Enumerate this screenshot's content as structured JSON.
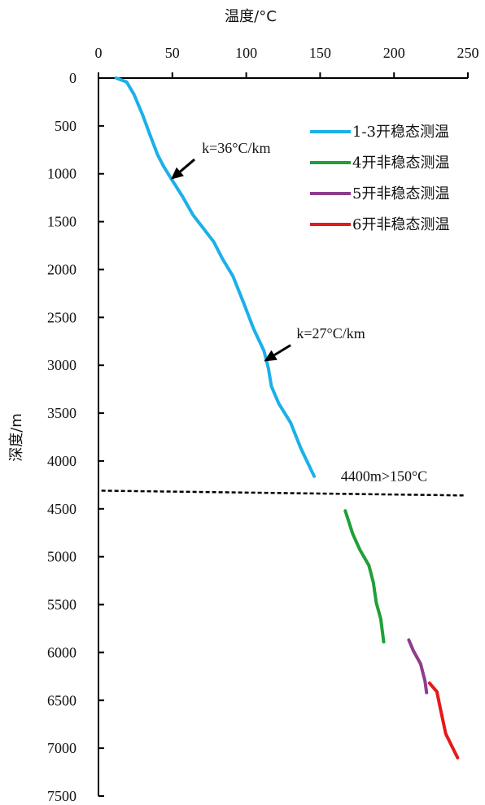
{
  "chart_data": {
    "type": "line",
    "xlabel": "温度/°C",
    "ylabel": "深度/m",
    "x_axis_position": "top",
    "y_axis_inverted": true,
    "xlim": [
      0,
      250
    ],
    "ylim": [
      0,
      7500
    ],
    "x_ticks": [
      "0",
      "50",
      "100",
      "150",
      "200",
      "250"
    ],
    "y_ticks": [
      "0",
      "500",
      "1000",
      "1500",
      "2000",
      "2500",
      "3000",
      "3500",
      "4000",
      "4500",
      "5000",
      "5500",
      "6000",
      "6500",
      "7000",
      "7500"
    ],
    "legend_position": "top-right",
    "series": [
      {
        "name": "1-3开稳态测温",
        "color": "#1ab0ea",
        "points": [
          [
            12,
            0
          ],
          [
            19,
            40
          ],
          [
            24,
            170
          ],
          [
            30,
            390
          ],
          [
            35,
            600
          ],
          [
            40,
            800
          ],
          [
            44,
            920
          ],
          [
            50,
            1070
          ],
          [
            57,
            1240
          ],
          [
            64,
            1430
          ],
          [
            71,
            1570
          ],
          [
            78,
            1710
          ],
          [
            84,
            1890
          ],
          [
            91,
            2070
          ],
          [
            98,
            2340
          ],
          [
            105,
            2620
          ],
          [
            112,
            2850
          ],
          [
            115,
            3030
          ],
          [
            117,
            3220
          ],
          [
            122,
            3400
          ],
          [
            130,
            3600
          ],
          [
            137,
            3870
          ],
          [
            146,
            4160
          ]
        ]
      },
      {
        "name": "4开非稳态测温",
        "color": "#1fa038",
        "points": [
          [
            167,
            4520
          ],
          [
            172,
            4760
          ],
          [
            177,
            4930
          ],
          [
            183,
            5090
          ],
          [
            186,
            5270
          ],
          [
            188,
            5480
          ],
          [
            191,
            5650
          ],
          [
            193,
            5890
          ]
        ]
      },
      {
        "name": "5开非稳态测温",
        "color": "#8e3c8e",
        "points": [
          [
            210,
            5870
          ],
          [
            213,
            5980
          ],
          [
            218,
            6120
          ],
          [
            221,
            6300
          ],
          [
            222,
            6420
          ]
        ]
      },
      {
        "name": "6开非稳态测温",
        "color": "#e41a1c",
        "points": [
          [
            224,
            6320
          ],
          [
            229,
            6410
          ],
          [
            231,
            6560
          ],
          [
            235,
            6850
          ],
          [
            243,
            7100
          ]
        ]
      }
    ],
    "threshold_line": {
      "points": [
        [
          2,
          4310
        ],
        [
          248,
          4360
        ]
      ],
      "style": "dashed",
      "color": "#000000",
      "label": "4400m>150°C",
      "label_anchor": [
        164,
        4210
      ]
    },
    "annotations": [
      {
        "text": "k=36°C/km",
        "text_anchor": [
          70,
          780
        ],
        "arrow_from": [
          65,
          850
        ],
        "arrow_to": [
          49,
          1060
        ]
      },
      {
        "text": "k=27°C/km",
        "text_anchor": [
          134,
          2720
        ],
        "arrow_from": [
          130,
          2790
        ],
        "arrow_to": [
          112,
          2960
        ]
      }
    ]
  }
}
